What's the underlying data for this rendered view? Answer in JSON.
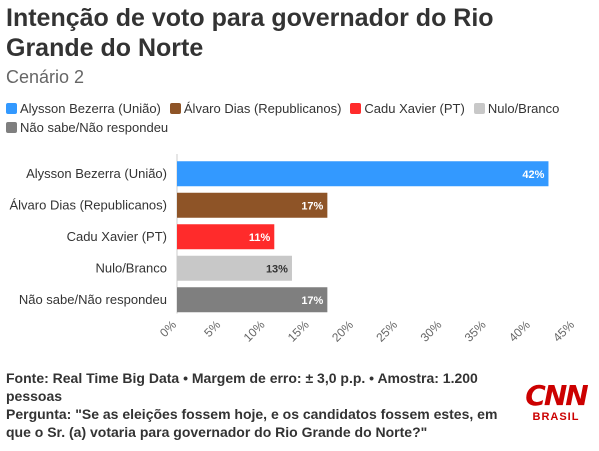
{
  "header": {
    "title": "Intenção de voto para governador do Rio Grande do Norte",
    "subtitle": "Cenário 2"
  },
  "legend": [
    {
      "label": "Alysson Bezerra (União)",
      "color": "#3399ff"
    },
    {
      "label": "Álvaro Dias (Republicanos)",
      "color": "#8e5427"
    },
    {
      "label": "Cadu Xavier (PT)",
      "color": "#ff2b2b"
    },
    {
      "label": "Nulo/Branco",
      "color": "#c8c8c8"
    },
    {
      "label": "Não sabe/Não respondeu",
      "color": "#7f7f7f"
    }
  ],
  "chart_data": {
    "type": "bar",
    "orientation": "horizontal",
    "categories": [
      "Alysson Bezerra (União)",
      "Álvaro Dias (Republicanos)",
      "Cadu Xavier (PT)",
      "Nulo/Branco",
      "Não sabe/Não respondeu"
    ],
    "values": [
      42,
      17,
      11,
      13,
      17
    ],
    "data_labels": [
      "42%",
      "17%",
      "11%",
      "13%",
      "17%"
    ],
    "colors": [
      "#3399ff",
      "#8e5427",
      "#ff2b2b",
      "#c8c8c8",
      "#7f7f7f"
    ],
    "label_colors": [
      "#ffffff",
      "#ffffff",
      "#ffffff",
      "#333333",
      "#ffffff"
    ],
    "xlim": [
      0,
      45
    ],
    "x_ticks": [
      0,
      5,
      10,
      15,
      20,
      25,
      30,
      35,
      40,
      45
    ],
    "x_tick_labels": [
      "0%",
      "5%",
      "10%",
      "15%",
      "20%",
      "25%",
      "30%",
      "35%",
      "40%",
      "45%"
    ],
    "grid": false,
    "legend_position": "top"
  },
  "footer": {
    "source": "Fonte: Real Time Big Data • Margem de erro: ± 3,0 p.p. • Amostra: 1.200 pessoas",
    "question": "Pergunta: \"Se as eleições fossem hoje, e os candidatos fossem estes, em que o Sr. (a) votaria para governador do Rio Grande do Norte?\""
  },
  "logo": {
    "name": "CNN",
    "sub": "BRASIL",
    "color": "#cc0000"
  }
}
